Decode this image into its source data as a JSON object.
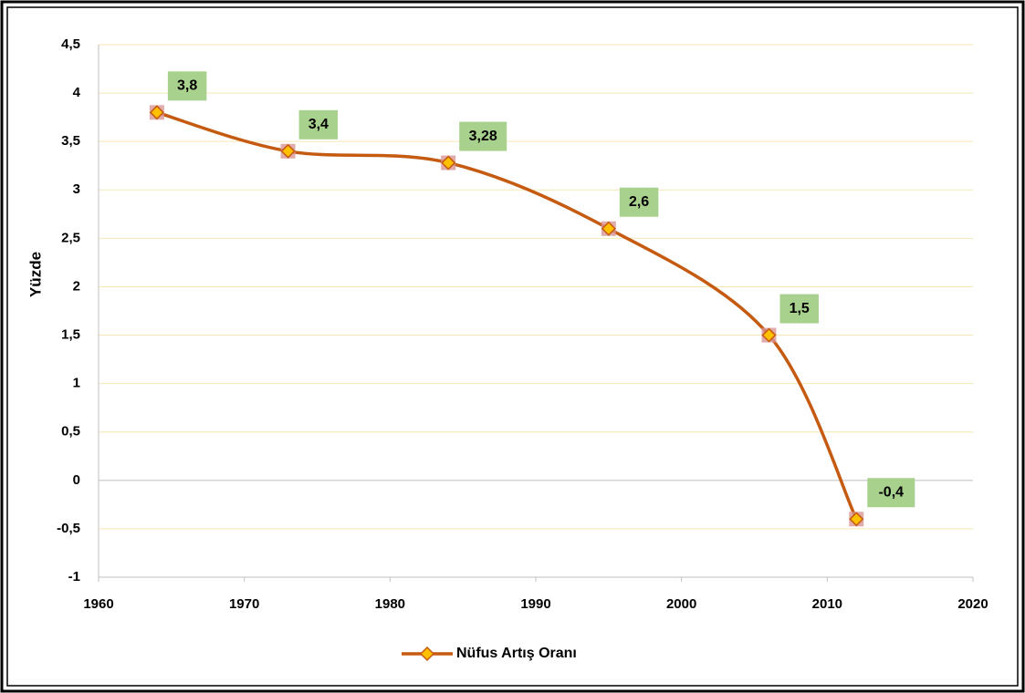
{
  "chart_data": {
    "type": "line",
    "ylabel": "Yüzde",
    "x": [
      1964,
      1973,
      1984,
      1995,
      2006,
      2012
    ],
    "series": [
      {
        "name": "Nüfus Artış Oranı",
        "color": "#c55a11",
        "marker_color": "#ffc000",
        "values": [
          3.8,
          3.4,
          3.28,
          2.6,
          1.5,
          -0.4
        ],
        "value_labels": [
          "3,8",
          "3,4",
          "3,28",
          "2,6",
          "1,5",
          "-0,4"
        ]
      }
    ],
    "xlim": [
      1960,
      2020
    ],
    "xticks": [
      1960,
      1970,
      1980,
      1990,
      2000,
      2010,
      2020
    ],
    "ylim": [
      -1,
      4.5
    ],
    "yticks": [
      -1,
      {
        "value": -0.5,
        "label": "-0,5"
      },
      0,
      {
        "value": 0.5,
        "label": "0,5"
      },
      1,
      {
        "value": 1.5,
        "label": "1,5"
      },
      2,
      {
        "value": 2.5,
        "label": "2,5"
      },
      3,
      {
        "value": 3.5,
        "label": "3,5"
      },
      4,
      {
        "value": 4.5,
        "label": "4,5"
      }
    ],
    "grid": true,
    "smooth": true,
    "legend": "bottom",
    "label_color": "#a9d18e"
  }
}
